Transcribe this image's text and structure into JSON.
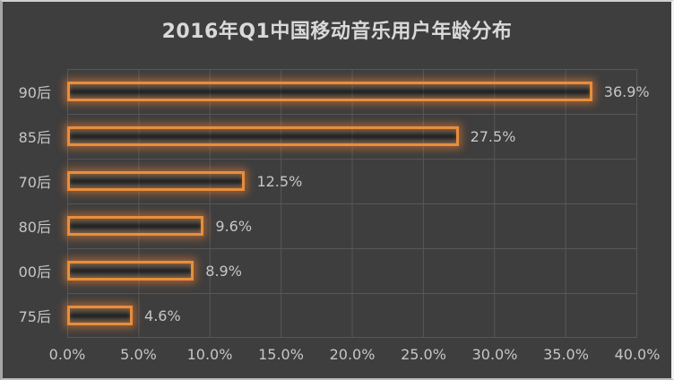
{
  "title": "2016年Q1中国移动音乐用户年龄分布",
  "colors": {
    "background": "#3E3E3E",
    "gridline": "#575757",
    "title_text": "#D9D9D9",
    "axis_text": "#C6C6C6",
    "bar_border": "#E78E3C",
    "bar_glow": "#ED7D31"
  },
  "chart_data": {
    "type": "bar",
    "orientation": "horizontal",
    "title": "2016年Q1中国移动音乐用户年龄分布",
    "categories": [
      "90后",
      "85后",
      "70后",
      "80后",
      "00后",
      "75后"
    ],
    "values": [
      36.9,
      27.5,
      12.5,
      9.6,
      8.9,
      4.6
    ],
    "value_labels": [
      "36.9%",
      "27.5%",
      "12.5%",
      "9.6%",
      "8.9%",
      "4.6%"
    ],
    "x_tick_labels": [
      "0.0%",
      "5.0%",
      "10.0%",
      "15.0%",
      "20.0%",
      "25.0%",
      "30.0%",
      "35.0%",
      "40.0%"
    ],
    "xlim": [
      0,
      40
    ],
    "grid": true,
    "legend": false,
    "bar_style": "hollow-outline-with-orange-glow"
  }
}
